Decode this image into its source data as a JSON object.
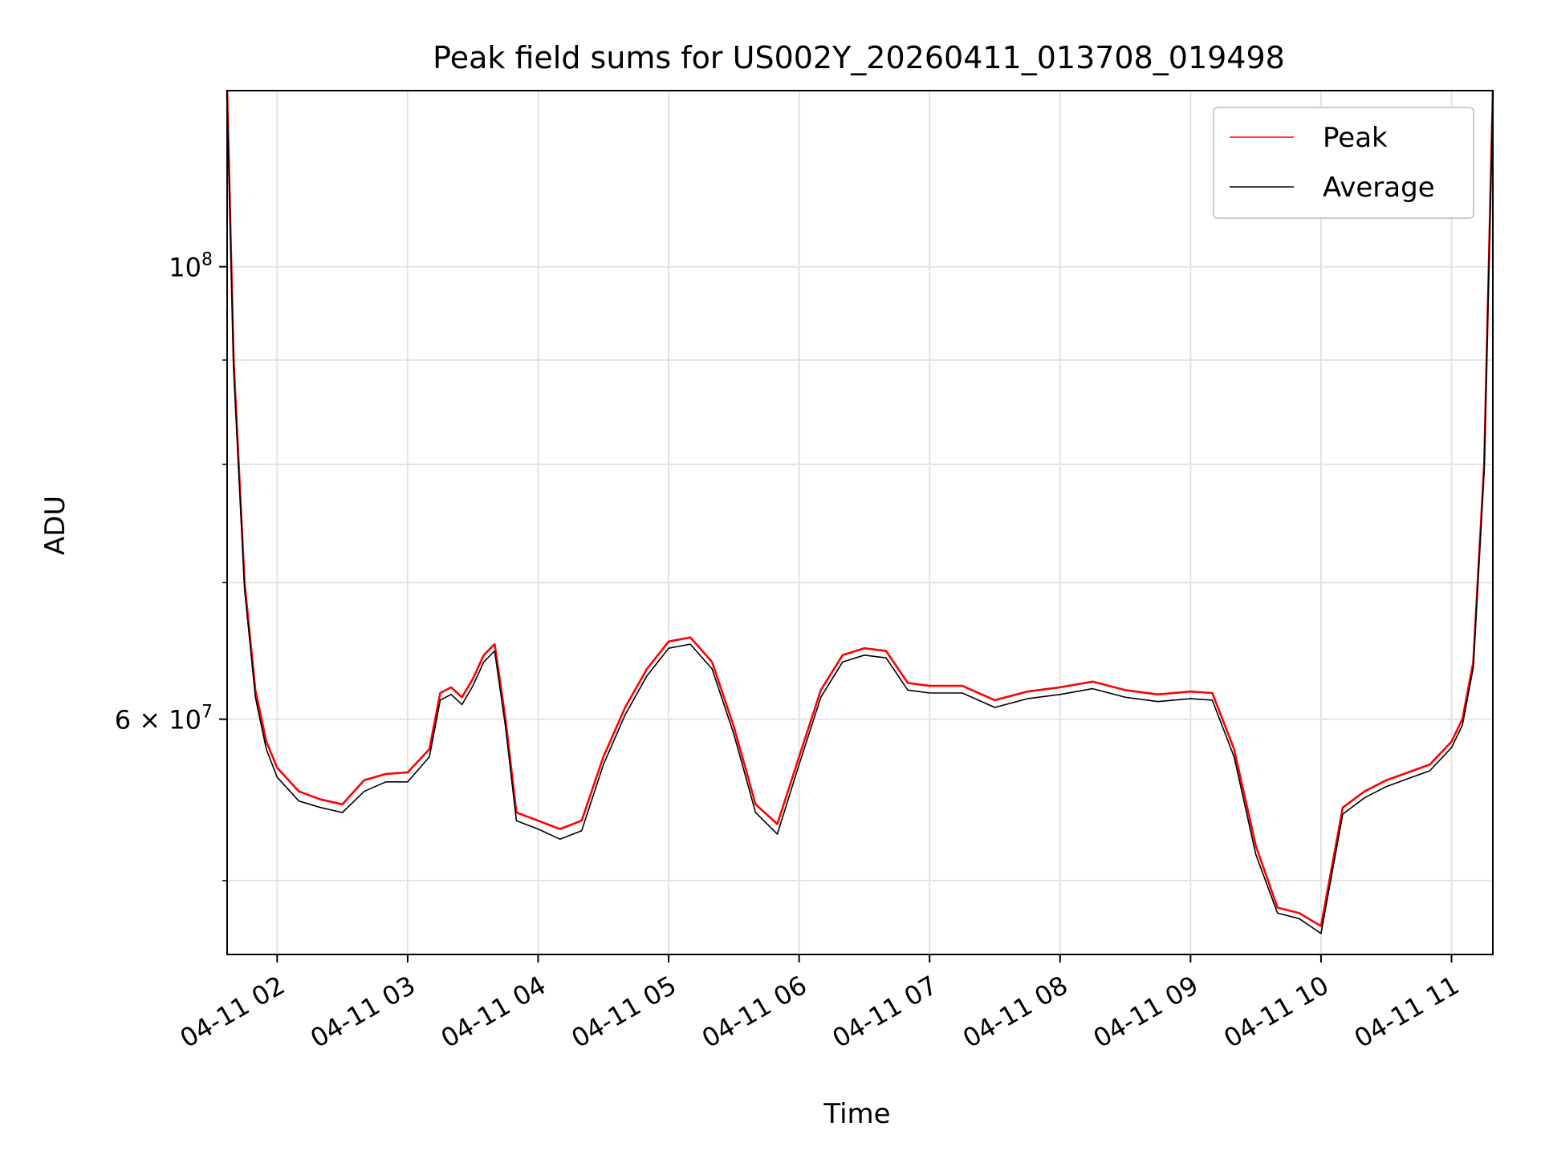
{
  "chart_data": {
    "type": "line",
    "title": "Peak field sums for US002Y_20260411_013708_019498",
    "xlabel": "Time",
    "ylabel": "ADU",
    "yscale": "log",
    "xlim": [
      "2026-04-11 01:37",
      "2026-04-11 11:19"
    ],
    "ylim": [
      46000000,
      122000000
    ],
    "x_ticks": [
      {
        "value": "2026-04-11 02:00",
        "label": "04-11 02"
      },
      {
        "value": "2026-04-11 03:00",
        "label": "04-11 03"
      },
      {
        "value": "2026-04-11 04:00",
        "label": "04-11 04"
      },
      {
        "value": "2026-04-11 05:00",
        "label": "04-11 05"
      },
      {
        "value": "2026-04-11 06:00",
        "label": "04-11 06"
      },
      {
        "value": "2026-04-11 07:00",
        "label": "04-11 07"
      },
      {
        "value": "2026-04-11 08:00",
        "label": "04-11 08"
      },
      {
        "value": "2026-04-11 09:00",
        "label": "04-11 09"
      },
      {
        "value": "2026-04-11 10:00",
        "label": "04-11 10"
      },
      {
        "value": "2026-04-11 11:00",
        "label": "04-11 11"
      }
    ],
    "y_ticks": [
      {
        "value": 60000000,
        "base": "6 × 10",
        "exp": "7"
      },
      {
        "value": 100000000,
        "base": "10",
        "exp": "8"
      }
    ],
    "y_minor_ticks": [
      50000000,
      70000000,
      80000000,
      90000000
    ],
    "grid": true,
    "legend_position": "top-right",
    "series": [
      {
        "name": "Peak",
        "color": "#ff0000",
        "x": [
          "2026-04-11 01:37",
          "2026-04-11 01:40",
          "2026-04-11 01:45",
          "2026-04-11 01:50",
          "2026-04-11 01:55",
          "2026-04-11 02:00",
          "2026-04-11 02:10",
          "2026-04-11 02:20",
          "2026-04-11 02:30",
          "2026-04-11 02:40",
          "2026-04-11 02:50",
          "2026-04-11 03:00",
          "2026-04-11 03:10",
          "2026-04-11 03:15",
          "2026-04-11 03:20",
          "2026-04-11 03:25",
          "2026-04-11 03:30",
          "2026-04-11 03:35",
          "2026-04-11 03:40",
          "2026-04-11 03:45",
          "2026-04-11 03:50",
          "2026-04-11 04:00",
          "2026-04-11 04:10",
          "2026-04-11 04:20",
          "2026-04-11 04:30",
          "2026-04-11 04:40",
          "2026-04-11 04:50",
          "2026-04-11 05:00",
          "2026-04-11 05:10",
          "2026-04-11 05:20",
          "2026-04-11 05:30",
          "2026-04-11 05:40",
          "2026-04-11 05:50",
          "2026-04-11 06:00",
          "2026-04-11 06:10",
          "2026-04-11 06:20",
          "2026-04-11 06:30",
          "2026-04-11 06:40",
          "2026-04-11 06:50",
          "2026-04-11 07:00",
          "2026-04-11 07:15",
          "2026-04-11 07:30",
          "2026-04-11 07:45",
          "2026-04-11 08:00",
          "2026-04-11 08:15",
          "2026-04-11 08:30",
          "2026-04-11 08:45",
          "2026-04-11 09:00",
          "2026-04-11 09:10",
          "2026-04-11 09:20",
          "2026-04-11 09:30",
          "2026-04-11 09:40",
          "2026-04-11 09:50",
          "2026-04-11 10:00",
          "2026-04-11 10:10",
          "2026-04-11 10:20",
          "2026-04-11 10:30",
          "2026-04-11 10:40",
          "2026-04-11 10:50",
          "2026-04-11 11:00",
          "2026-04-11 11:05",
          "2026-04-11 11:10",
          "2026-04-11 11:15",
          "2026-04-11 11:19"
        ],
        "y": [
          122000000,
          90000000,
          70000000,
          62000000,
          58500000,
          56800000,
          55300000,
          54800000,
          54500000,
          56000000,
          56400000,
          56500000,
          58000000,
          61800000,
          62200000,
          61500000,
          62800000,
          64500000,
          65300000,
          60000000,
          54000000,
          53500000,
          53000000,
          53500000,
          57500000,
          60800000,
          63500000,
          65500000,
          65800000,
          64000000,
          59500000,
          54500000,
          53300000,
          57500000,
          62000000,
          64500000,
          65000000,
          64800000,
          62500000,
          62300000,
          62300000,
          61300000,
          61900000,
          62200000,
          62600000,
          62000000,
          61700000,
          61900000,
          61800000,
          58000000,
          52000000,
          48500000,
          48200000,
          47500000,
          54300000,
          55300000,
          56000000,
          56500000,
          57000000,
          58500000,
          60000000,
          64000000,
          80000000,
          122000000
        ]
      },
      {
        "name": "Average",
        "color": "#000000",
        "x": [
          "2026-04-11 01:37",
          "2026-04-11 01:40",
          "2026-04-11 01:45",
          "2026-04-11 01:50",
          "2026-04-11 01:55",
          "2026-04-11 02:00",
          "2026-04-11 02:10",
          "2026-04-11 02:20",
          "2026-04-11 02:30",
          "2026-04-11 02:40",
          "2026-04-11 02:50",
          "2026-04-11 03:00",
          "2026-04-11 03:10",
          "2026-04-11 03:15",
          "2026-04-11 03:20",
          "2026-04-11 03:25",
          "2026-04-11 03:30",
          "2026-04-11 03:35",
          "2026-04-11 03:40",
          "2026-04-11 03:45",
          "2026-04-11 03:50",
          "2026-04-11 04:00",
          "2026-04-11 04:10",
          "2026-04-11 04:20",
          "2026-04-11 04:30",
          "2026-04-11 04:40",
          "2026-04-11 04:50",
          "2026-04-11 05:00",
          "2026-04-11 05:10",
          "2026-04-11 05:20",
          "2026-04-11 05:30",
          "2026-04-11 05:40",
          "2026-04-11 05:50",
          "2026-04-11 06:00",
          "2026-04-11 06:10",
          "2026-04-11 06:20",
          "2026-04-11 06:30",
          "2026-04-11 06:40",
          "2026-04-11 06:50",
          "2026-04-11 07:00",
          "2026-04-11 07:15",
          "2026-04-11 07:30",
          "2026-04-11 07:45",
          "2026-04-11 08:00",
          "2026-04-11 08:15",
          "2026-04-11 08:30",
          "2026-04-11 08:45",
          "2026-04-11 09:00",
          "2026-04-11 09:10",
          "2026-04-11 09:20",
          "2026-04-11 09:30",
          "2026-04-11 09:40",
          "2026-04-11 09:50",
          "2026-04-11 10:00",
          "2026-04-11 10:10",
          "2026-04-11 10:20",
          "2026-04-11 10:30",
          "2026-04-11 10:40",
          "2026-04-11 10:50",
          "2026-04-11 11:00",
          "2026-04-11 11:05",
          "2026-04-11 11:10",
          "2026-04-11 11:15",
          "2026-04-11 11:19"
        ],
        "y": [
          121000000,
          89000000,
          69500000,
          61500000,
          58000000,
          56200000,
          54700000,
          54300000,
          54000000,
          55300000,
          55900000,
          55900000,
          57500000,
          61300000,
          61700000,
          61000000,
          62300000,
          64000000,
          64800000,
          59500000,
          53500000,
          53000000,
          52400000,
          52900000,
          57000000,
          60300000,
          63000000,
          65000000,
          65300000,
          63500000,
          59000000,
          54000000,
          52700000,
          57000000,
          61500000,
          64000000,
          64500000,
          64300000,
          62000000,
          61800000,
          61800000,
          60800000,
          61400000,
          61700000,
          62100000,
          61500000,
          61200000,
          61400000,
          61300000,
          57500000,
          51500000,
          48200000,
          47900000,
          47100000,
          53900000,
          54900000,
          55600000,
          56100000,
          56600000,
          58100000,
          59600000,
          63600000,
          79500000,
          121000000
        ]
      }
    ]
  }
}
